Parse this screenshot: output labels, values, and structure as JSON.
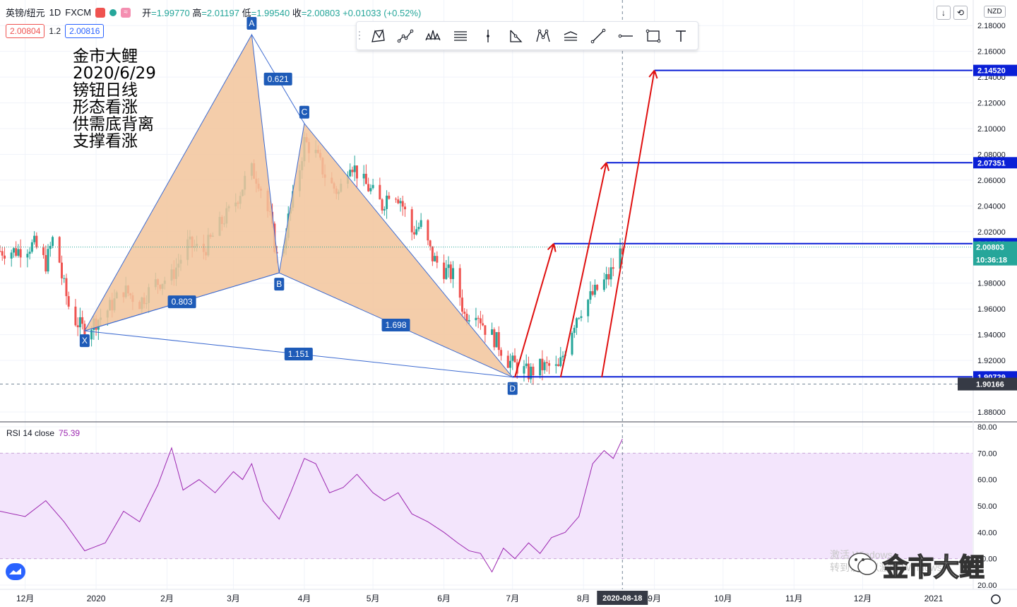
{
  "header": {
    "symbol": "英镑/纽元",
    "interval": "1D",
    "exchange": "FXCM",
    "open_label": "开",
    "open": "=1.99770",
    "high_label": "高",
    "high": "=2.01197",
    "low_label": "低",
    "low": "=1.99540",
    "close_label": "收",
    "close": "=2.00803",
    "change": "+0.01033 (+0.52%)",
    "sell_price": "2.00804",
    "spread": "1.2",
    "buy_price": "2.00816",
    "currency": "NZD"
  },
  "note_lines": [
    "金市大鲤",
    "2020/6/29",
    "镑钮日线",
    "形态看涨",
    "供需底背离",
    "支撑看涨"
  ],
  "toolbar": {
    "tools": [
      "xabcd-pattern-icon",
      "cypher-pattern-icon",
      "head-shoulders-icon",
      "abcd-icon",
      "vertical-line-icon",
      "three-drives-icon",
      "elliott-wave-icon",
      "long-position-icon",
      "trend-line-icon",
      "horizontal-ray-icon",
      "rectangle-icon",
      "text-icon"
    ]
  },
  "top_buttons": [
    "↓",
    "⟲"
  ],
  "rsi_label": "RSI 14 close",
  "rsi_value": "75.39",
  "watermark_lines": [
    "激活 Windows",
    "转到设置以激活 Windows。"
  ],
  "brand": "金市大鲤",
  "chart_data": [
    {
      "type": "candlestick",
      "title": "英镑/纽元 · 1D · FXCM",
      "y_range": [
        1.87,
        2.2
      ],
      "y_ticks": [
        "2.18000",
        "2.16000",
        "2.14000",
        "2.12000",
        "2.10000",
        "2.08000",
        "2.06000",
        "2.04000",
        "2.02000",
        "2.00000",
        "1.98000",
        "1.96000",
        "1.94000",
        "1.92000",
        "1.88000"
      ],
      "y_tick_values": [
        2.18,
        2.16,
        2.14,
        2.12,
        2.1,
        2.08,
        2.06,
        2.04,
        2.02,
        2.0,
        1.98,
        1.96,
        1.94,
        1.92,
        1.88
      ],
      "x_ticks": [
        "12月",
        "2020",
        "2月",
        "3月",
        "4月",
        "5月",
        "6月",
        "7月",
        "8月",
        "9月",
        "10月",
        "11月",
        "12月",
        "2021"
      ],
      "x_tick_dates": [
        "2019-12-01",
        "2020-01-01",
        "2020-02-01",
        "2020-03-01",
        "2020-04-01",
        "2020-05-01",
        "2020-06-01",
        "2020-07-01",
        "2020-08-01",
        "2020-09-01",
        "2020-10-01",
        "2020-11-01",
        "2020-12-01",
        "2021-01-01"
      ],
      "x_date_start": "2019-11-20",
      "x_date_end": "2021-01-18",
      "crosshair_date": "2020-08-18",
      "crosshair_price": "1.90166",
      "current_price": "2.00803",
      "countdown": "10:36:18",
      "price_path": [
        [
          "2019-11-20",
          2.005
        ],
        [
          "2019-11-27",
          2.005
        ],
        [
          "2019-12-05",
          2.01
        ],
        [
          "2019-12-10",
          1.995
        ],
        [
          "2019-12-14",
          2.02
        ],
        [
          "2019-12-17",
          1.985
        ],
        [
          "2019-12-21",
          1.955
        ],
        [
          "2019-12-27",
          1.943
        ],
        [
          "2020-01-05",
          1.957
        ],
        [
          "2020-01-13",
          1.975
        ],
        [
          "2020-01-20",
          1.965
        ],
        [
          "2020-01-27",
          1.98
        ],
        [
          "2020-02-03",
          1.985
        ],
        [
          "2020-02-10",
          2.01
        ],
        [
          "2020-02-17",
          2.005
        ],
        [
          "2020-02-24",
          2.025
        ],
        [
          "2020-03-01",
          2.04
        ],
        [
          "2020-03-05",
          2.055
        ],
        [
          "2020-03-08",
          2.07
        ],
        [
          "2020-03-12",
          2.06
        ],
        [
          "2020-03-17",
          2.03
        ],
        [
          "2020-03-21",
          1.99
        ],
        [
          "2020-03-25",
          2.03
        ],
        [
          "2020-03-29",
          2.06
        ],
        [
          "2020-04-01",
          2.09
        ],
        [
          "2020-04-06",
          2.08
        ],
        [
          "2020-04-11",
          2.06
        ],
        [
          "2020-04-16",
          2.05
        ],
        [
          "2020-04-21",
          2.075
        ],
        [
          "2020-04-26",
          2.06
        ],
        [
          "2020-05-01",
          2.05
        ],
        [
          "2020-05-05",
          2.04
        ],
        [
          "2020-05-09",
          2.055
        ],
        [
          "2020-05-13",
          2.045
        ],
        [
          "2020-05-18",
          2.02
        ],
        [
          "2020-05-22",
          2.025
        ],
        [
          "2020-05-27",
          2.0
        ],
        [
          "2020-06-01",
          1.99
        ],
        [
          "2020-06-06",
          1.985
        ],
        [
          "2020-06-10",
          1.955
        ],
        [
          "2020-06-15",
          1.96
        ],
        [
          "2020-06-19",
          1.945
        ],
        [
          "2020-06-24",
          1.935
        ],
        [
          "2020-06-29",
          1.92
        ],
        [
          "2020-07-03",
          1.915
        ],
        [
          "2020-07-08",
          1.91
        ],
        [
          "2020-07-13",
          1.915
        ],
        [
          "2020-07-17",
          1.915
        ],
        [
          "2020-07-21",
          1.913
        ],
        [
          "2020-07-25",
          1.935
        ],
        [
          "2020-07-29",
          1.955
        ],
        [
          "2020-08-02",
          1.965
        ],
        [
          "2020-08-07",
          1.975
        ],
        [
          "2020-08-12",
          1.985
        ],
        [
          "2020-08-18",
          2.008
        ]
      ]
    },
    {
      "type": "xabcd_pattern",
      "points": [
        {
          "label": "X",
          "date": "2019-12-27",
          "price": 1.943
        },
        {
          "label": "A",
          "date": "2020-03-09",
          "price": 2.173
        },
        {
          "label": "B",
          "date": "2020-03-21",
          "price": 1.988
        },
        {
          "label": "C",
          "date": "2020-04-01",
          "price": 2.104
        },
        {
          "label": "D",
          "date": "2020-07-01",
          "price": 1.907
        }
      ],
      "ratios": {
        "XB": "0.803",
        "AC": "0.621",
        "BD": "1.698",
        "XD": "1.151"
      }
    },
    {
      "type": "levels",
      "lines": [
        {
          "price": 2.1452,
          "label": "2.14520",
          "from": "2020-09-01"
        },
        {
          "price": 2.07351,
          "label": "2.07351",
          "from": "2020-08-11"
        },
        {
          "price": 2.0107,
          "label": "2.01070",
          "from": "2020-07-19"
        },
        {
          "price": 1.90729,
          "label": "1.90729",
          "from": "2020-07-01"
        }
      ],
      "arrows": [
        {
          "from_date": "2020-07-02",
          "from_price": 1.907,
          "to_date": "2020-07-19",
          "to_price": 2.0107
        },
        {
          "from_date": "2020-07-22",
          "from_price": 1.907,
          "to_date": "2020-08-11",
          "to_price": 2.07351
        },
        {
          "from_date": "2020-08-09",
          "from_price": 1.907,
          "to_date": "2020-09-01",
          "to_price": 2.1452
        }
      ],
      "arrow_color": "#e01010",
      "line_color": "#0a1fd6"
    },
    {
      "type": "line",
      "name": "RSI 14 close",
      "y_range": [
        20,
        80
      ],
      "y_ticks": [
        "80.00",
        "70.00",
        "60.00",
        "50.00",
        "40.00",
        "30.00",
        "20.00"
      ],
      "y_tick_values": [
        80,
        70,
        60,
        50,
        40,
        30,
        20
      ],
      "band": [
        30,
        70
      ],
      "last": 75.39,
      "points": [
        [
          "2019-11-20",
          48
        ],
        [
          "2019-12-01",
          46
        ],
        [
          "2019-12-10",
          52
        ],
        [
          "2019-12-18",
          44
        ],
        [
          "2019-12-27",
          33
        ],
        [
          "2020-01-05",
          36
        ],
        [
          "2020-01-13",
          48
        ],
        [
          "2020-01-20",
          44
        ],
        [
          "2020-01-28",
          58
        ],
        [
          "2020-02-03",
          72
        ],
        [
          "2020-02-08",
          56
        ],
        [
          "2020-02-15",
          60
        ],
        [
          "2020-02-22",
          55
        ],
        [
          "2020-03-01",
          63
        ],
        [
          "2020-03-05",
          60
        ],
        [
          "2020-03-09",
          66
        ],
        [
          "2020-03-14",
          52
        ],
        [
          "2020-03-21",
          45
        ],
        [
          "2020-03-26",
          55
        ],
        [
          "2020-04-01",
          68
        ],
        [
          "2020-04-06",
          66
        ],
        [
          "2020-04-12",
          55
        ],
        [
          "2020-04-18",
          57
        ],
        [
          "2020-04-24",
          62
        ],
        [
          "2020-05-01",
          55
        ],
        [
          "2020-05-06",
          52
        ],
        [
          "2020-05-12",
          55
        ],
        [
          "2020-05-18",
          47
        ],
        [
          "2020-05-25",
          44
        ],
        [
          "2020-06-01",
          40
        ],
        [
          "2020-06-07",
          36
        ],
        [
          "2020-06-12",
          33
        ],
        [
          "2020-06-17",
          32
        ],
        [
          "2020-06-22",
          25
        ],
        [
          "2020-06-27",
          34
        ],
        [
          "2020-07-02",
          30
        ],
        [
          "2020-07-08",
          36
        ],
        [
          "2020-07-13",
          32
        ],
        [
          "2020-07-18",
          38
        ],
        [
          "2020-07-24",
          40
        ],
        [
          "2020-07-30",
          46
        ],
        [
          "2020-08-05",
          66
        ],
        [
          "2020-08-10",
          71
        ],
        [
          "2020-08-14",
          68
        ],
        [
          "2020-08-18",
          75.39
        ]
      ],
      "color": "#9c27b0"
    }
  ]
}
